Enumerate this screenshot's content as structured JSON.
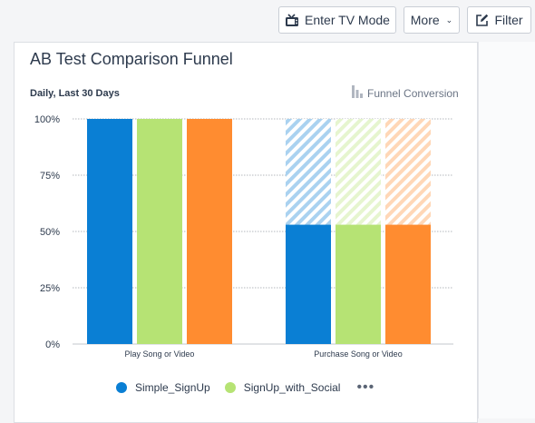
{
  "toolbar": {
    "tv_mode_label": "Enter TV Mode",
    "more_label": "More",
    "filter_label": "Filter"
  },
  "card": {
    "title": "AB Test Comparison Funnel",
    "subtitle": "Daily, Last 30 Days",
    "mode_label": "Funnel Conversion"
  },
  "legend": {
    "items": [
      "Simple_SignUp",
      "SignUp_with_Social"
    ],
    "more": "•••"
  },
  "colors": {
    "simple": "#0a7fd4",
    "social": "#b6e374",
    "orange": "#ff8c30"
  },
  "chart_data": {
    "type": "bar",
    "categories": [
      "Play Song or Video",
      "Purchase Song or Video"
    ],
    "y_tick_labels": [
      "100%",
      "75%",
      "50%",
      "25%",
      "0%"
    ],
    "ylim": [
      0,
      100
    ],
    "grid": true,
    "series": [
      {
        "name": "Simple_SignUp",
        "values": [
          100,
          53
        ]
      },
      {
        "name": "SignUp_with_Social",
        "values": [
          100,
          53
        ]
      },
      {
        "values": [
          100,
          53
        ]
      }
    ],
    "dropoff_hatched": true
  }
}
